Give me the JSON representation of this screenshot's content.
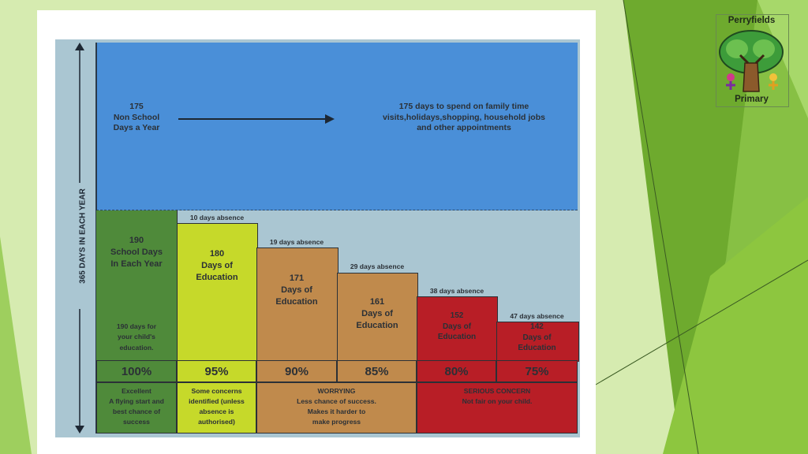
{
  "logo": {
    "top": "Perryfields",
    "bottom": "Primary"
  },
  "axis_label": "365 DAYS IN EACH YEAR",
  "top_section": {
    "left_text": [
      "175",
      "Non School",
      "Days a Year"
    ],
    "right_text": [
      "175 days to spend on family time",
      "visits,holidays,shopping, household jobs",
      "and other appointments"
    ]
  },
  "columns": [
    {
      "absence": "",
      "days": [
        "190",
        "School Days",
        "In Each Year"
      ],
      "sub": [
        "190 days for",
        "your child's",
        "education."
      ],
      "pct": "100%"
    },
    {
      "absence": "10 days absence",
      "days": [
        "180",
        "Days of",
        "Education"
      ],
      "pct": "95%"
    },
    {
      "absence": "19 days absence",
      "days": [
        "171",
        "Days of",
        "Education"
      ],
      "pct": "90%"
    },
    {
      "absence": "29 days absence",
      "days": [
        "161",
        "Days of",
        "Education"
      ],
      "pct": "85%"
    },
    {
      "absence": "38 days absence",
      "days": [
        "152",
        "Days of",
        "Education"
      ],
      "pct": "80%"
    },
    {
      "absence": "47 days absence",
      "days": [
        "142",
        "Days of",
        "Education"
      ],
      "pct": "75%"
    }
  ],
  "descriptions": [
    [
      "Excellent",
      "A flying start and",
      "best chance of",
      "success"
    ],
    [
      "Some concerns",
      "identified (unless",
      "absence is",
      "authorised)"
    ],
    [
      "WORRYING",
      "Less chance of success.",
      "Makes it harder to",
      "make progress"
    ],
    [
      "SERIOUS CONCERN",
      "Not fair on your child."
    ]
  ],
  "chart_data": {
    "type": "bar",
    "categories": [
      "100%",
      "95%",
      "90%",
      "85%",
      "80%",
      "75%"
    ],
    "series": [
      {
        "name": "Days of Education",
        "values": [
          190,
          180,
          171,
          161,
          152,
          142
        ]
      },
      {
        "values": [
          0,
          10,
          19,
          29,
          38,
          47
        ]
      }
    ],
    "ylabel": "365 DAYS IN EACH YEAR",
    "ylim": [
      0,
      365
    ]
  },
  "colors": {
    "background": "#d6ebb0",
    "top_blue": "#4a8fd8",
    "light_blue": "#aac6d2",
    "excellent_green": "#4f8a3a",
    "yellow": "#c6d92a",
    "orange": "#c08a4c",
    "red": "#b81e26"
  }
}
